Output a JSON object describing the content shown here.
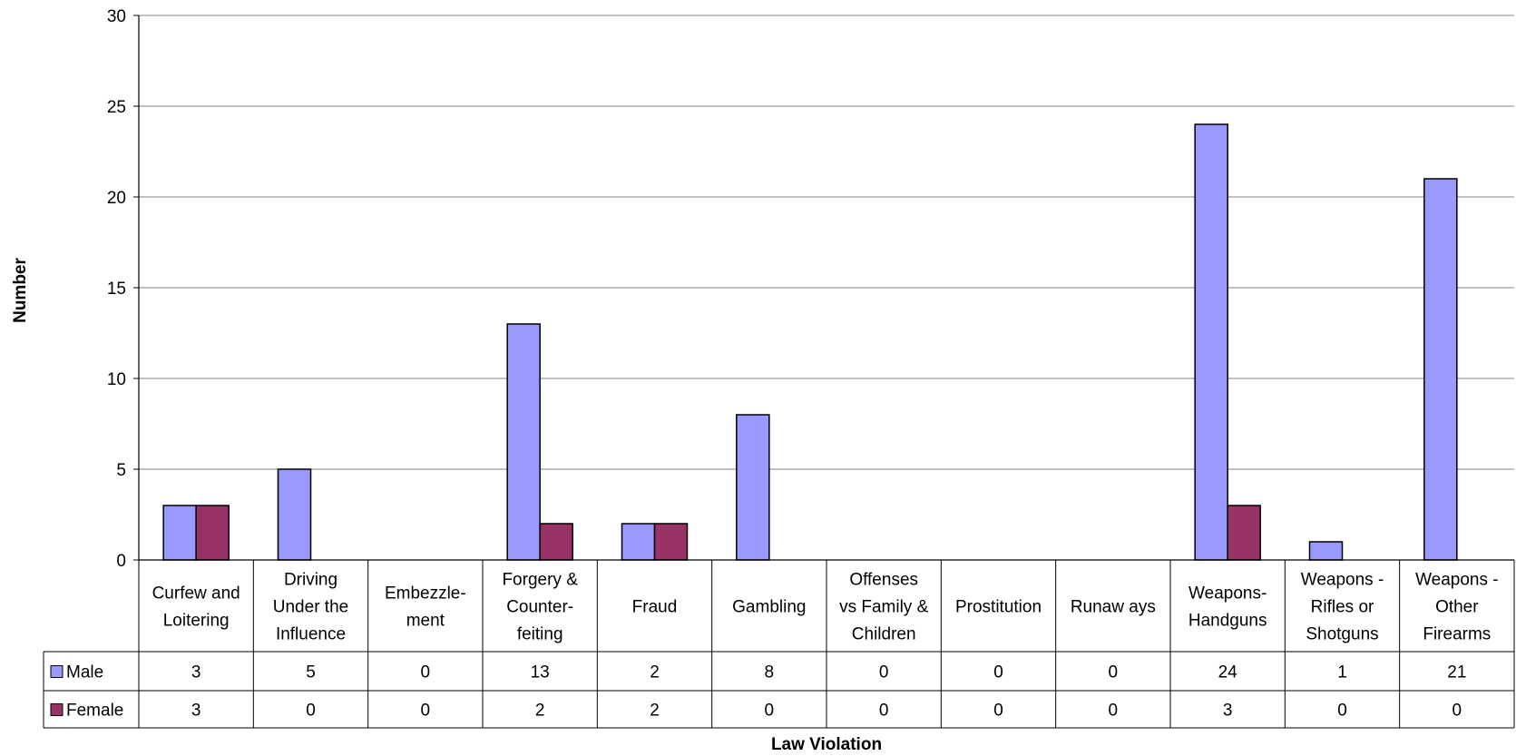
{
  "chart_data": {
    "type": "bar",
    "xlabel": "Law Violation",
    "ylabel": "Number",
    "ylim": [
      0,
      30
    ],
    "yticks": [
      0,
      5,
      10,
      15,
      20,
      25,
      30
    ],
    "grid": true,
    "legend": "data-table",
    "categories": [
      [
        "Curfew and",
        "Loitering"
      ],
      [
        "Driving",
        "Under the",
        "Influence"
      ],
      [
        "Embezzle-",
        "ment"
      ],
      [
        "Forgery &",
        "Counter-",
        "feiting"
      ],
      [
        "Fraud"
      ],
      [
        "Gambling"
      ],
      [
        "Offenses",
        "vs Family &",
        "Children"
      ],
      [
        "Prostitution"
      ],
      [
        "Runaw ays"
      ],
      [
        "Weapons-",
        "Handguns"
      ],
      [
        "Weapons -",
        "Rifles or",
        "Shotguns"
      ],
      [
        "Weapons -",
        "Other",
        "Firearms"
      ]
    ],
    "series": [
      {
        "name": "Male",
        "color": "#9999ff",
        "values": [
          3,
          5,
          0,
          13,
          2,
          8,
          0,
          0,
          0,
          24,
          1,
          21
        ]
      },
      {
        "name": "Female",
        "color": "#993366",
        "values": [
          3,
          0,
          0,
          2,
          2,
          0,
          0,
          0,
          0,
          3,
          0,
          0
        ]
      }
    ]
  }
}
